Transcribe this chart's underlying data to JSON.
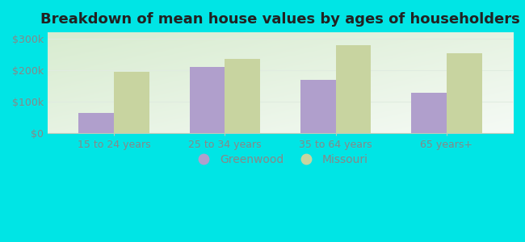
{
  "title": "Breakdown of mean house values by ages of householders",
  "categories": [
    "15 to 24 years",
    "25 to 34 years",
    "35 to 64 years",
    "65 years+"
  ],
  "greenwood_values": [
    65000,
    210000,
    168000,
    127000
  ],
  "missouri_values": [
    195000,
    235000,
    280000,
    253000
  ],
  "greenwood_color": "#b09fcc",
  "missouri_color": "#c8d4a0",
  "background_color": "#00e5e5",
  "plot_bg_grad_topleft": "#d8ecd0",
  "plot_bg_grad_bottomright": "#f0f8f0",
  "ylim": [
    0,
    320000
  ],
  "yticks": [
    0,
    100000,
    200000,
    300000
  ],
  "ytick_labels": [
    "$0",
    "$100k",
    "$200k",
    "$300k"
  ],
  "bar_width": 0.32,
  "legend_labels": [
    "Greenwood",
    "Missouri"
  ],
  "title_fontsize": 13,
  "tick_fontsize": 9,
  "legend_fontsize": 10,
  "gridline_color": "#e0ece0",
  "spine_color": "#bbccbb",
  "tick_color": "#888888"
}
